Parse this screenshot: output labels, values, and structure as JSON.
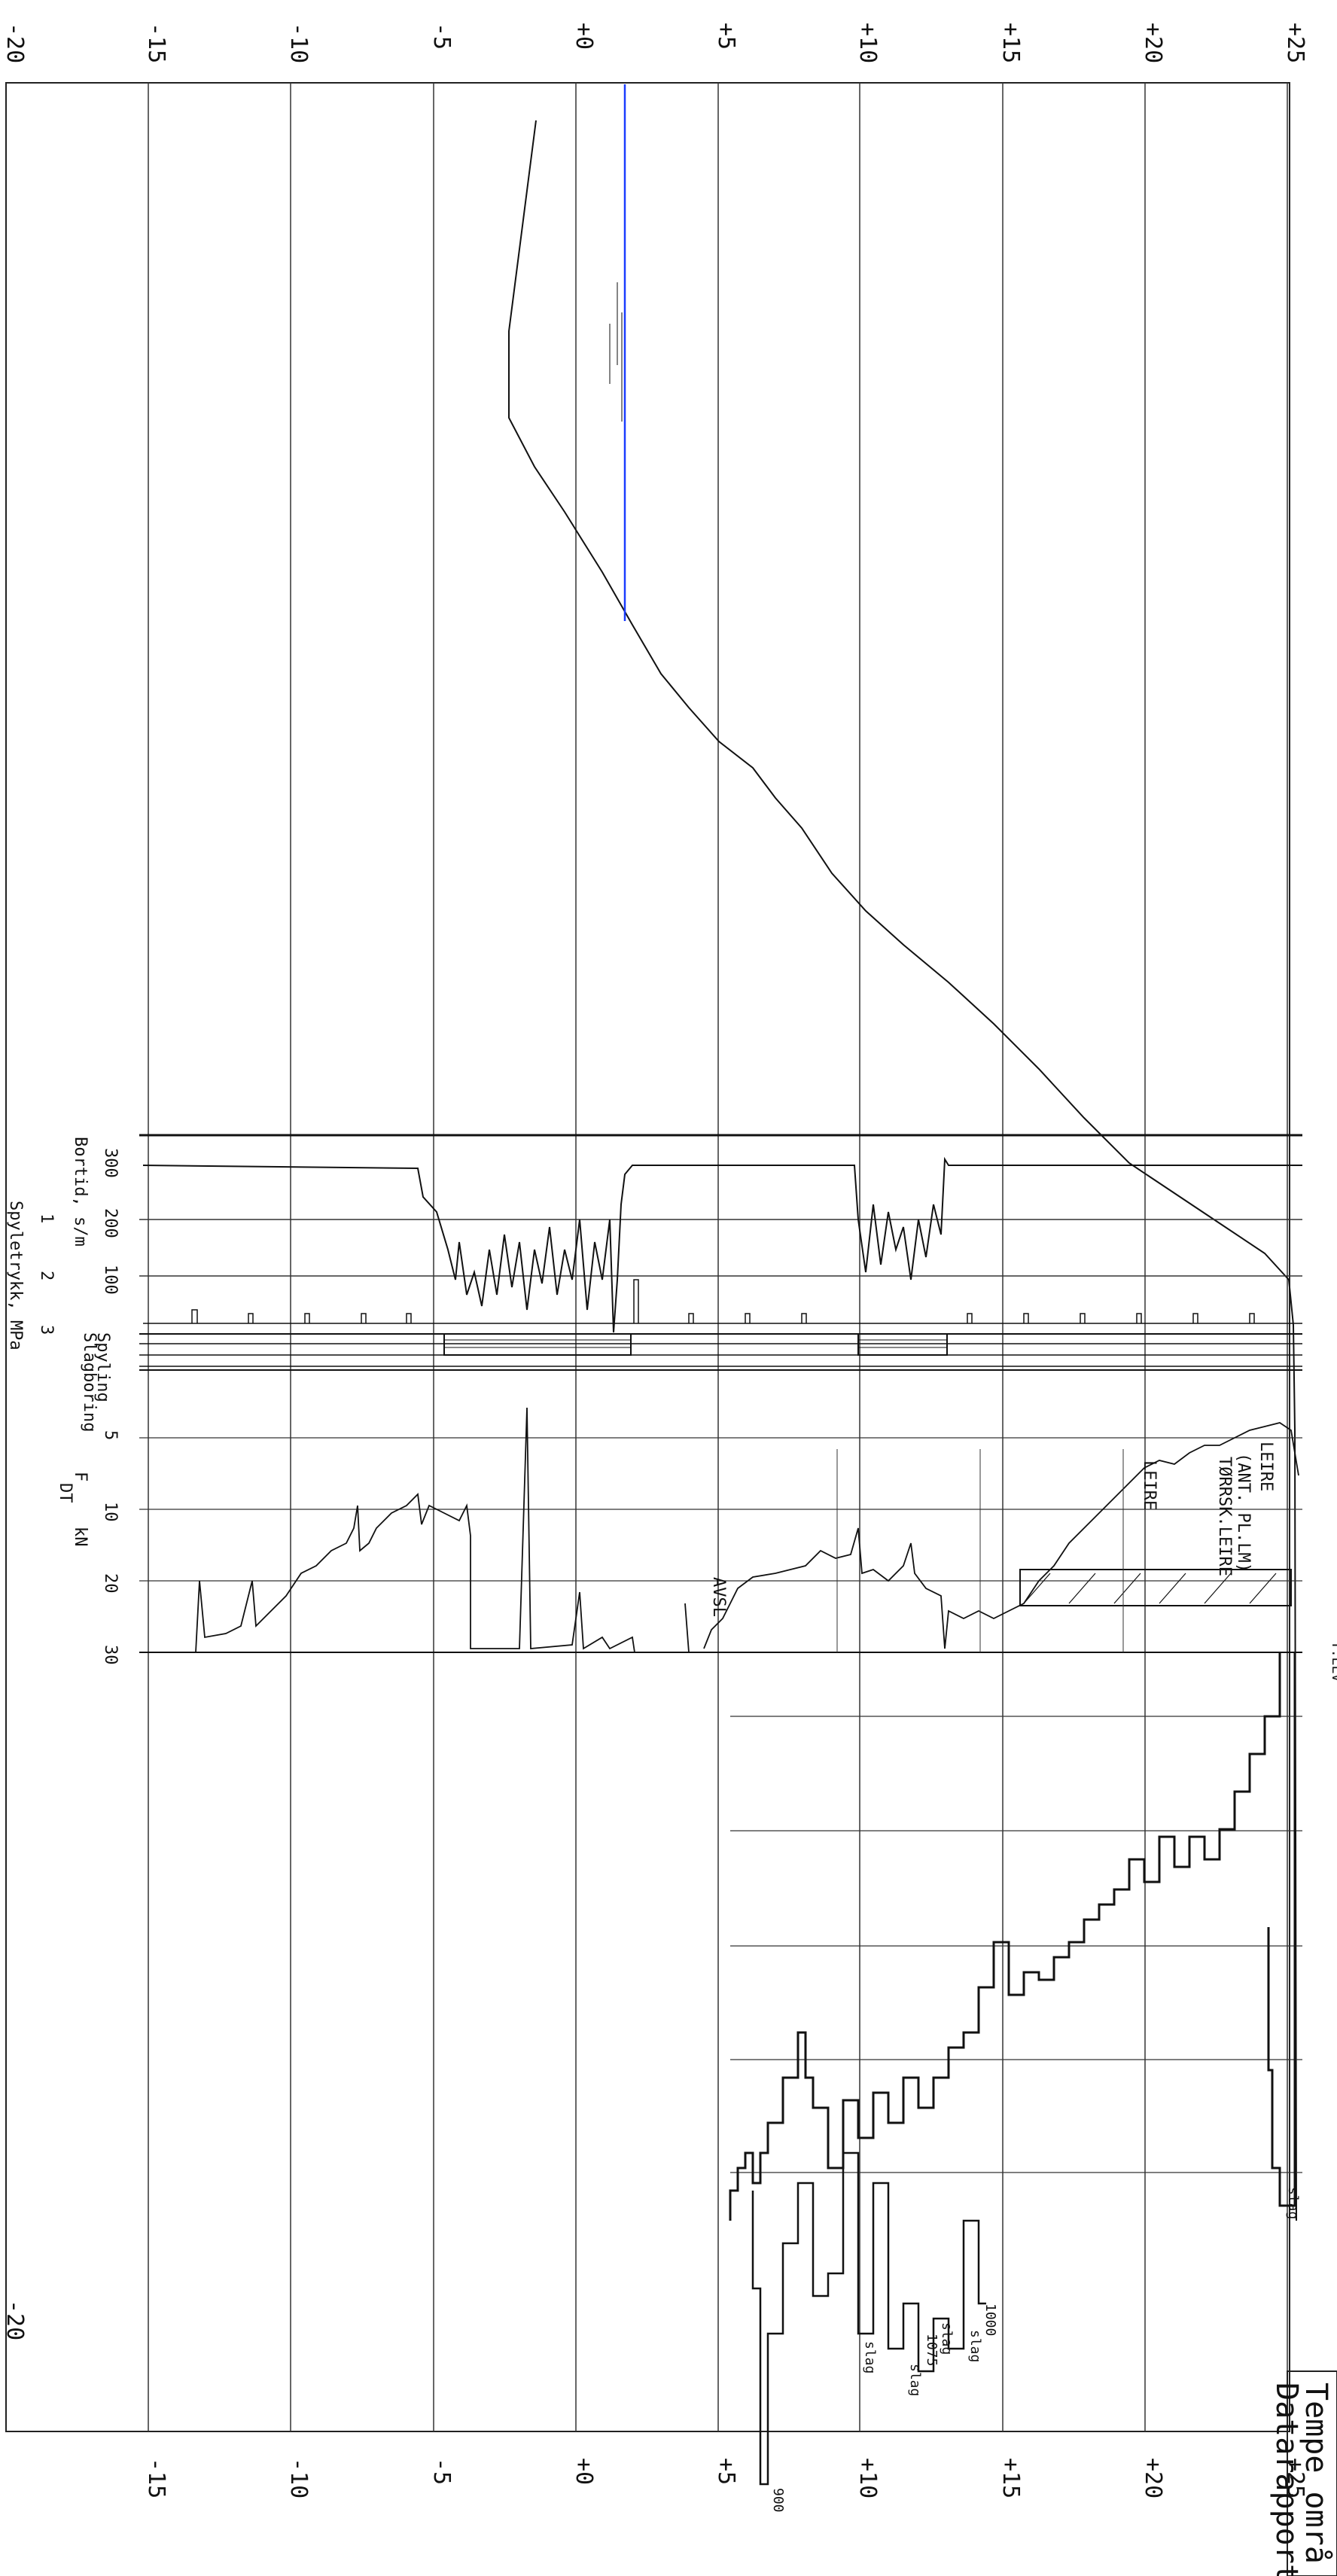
{
  "elevation_ticks": [
    "-20",
    "-15",
    "-10",
    "-5",
    "+0",
    "+5",
    "+10",
    "+15",
    "+20",
    "+25"
  ],
  "bottom_ticks": [
    "-20",
    "-15",
    "-10",
    "-5",
    "+0",
    "+5",
    "+10",
    "+15",
    "+20",
    "+25"
  ],
  "panels": {
    "bortid_label": "Bortid, s/m",
    "bortid_ticks": [
      "300",
      "200",
      "100"
    ],
    "spyletrykk_label": "Spyletrykk, MPa",
    "spyletrykk_ticks": [
      "1",
      "2",
      "3"
    ],
    "spyling_label": "Spyling",
    "slagboring_label": "Slagboring",
    "force_label_f": "F",
    "force_label_dt": "DT",
    "force_label_kn": "kN",
    "force_ticks": [
      "5",
      "10",
      "20",
      "30"
    ]
  },
  "annotations": {
    "leire_top": "LEIRE",
    "ant_pl_lm": "(ANT. PL.LM)",
    "torrsk_leire": "TØRRSK.LEIRE",
    "leire_2": "LEIRE",
    "avsl": "AVSL",
    "terr_label": "T.ELV",
    "slag_1": "slag",
    "slag_2": "slag",
    "slag_3": "slag",
    "slag_4": "slag",
    "slag_5": "slag",
    "n_1000": "1000",
    "n_1075": "1075",
    "n_900": "900"
  },
  "title_block": {
    "line1": "Tempe områ",
    "line2": "Datarapport"
  },
  "colors": {
    "line": "#111111",
    "grid": "#222222",
    "water_level": "#1a3cff"
  }
}
